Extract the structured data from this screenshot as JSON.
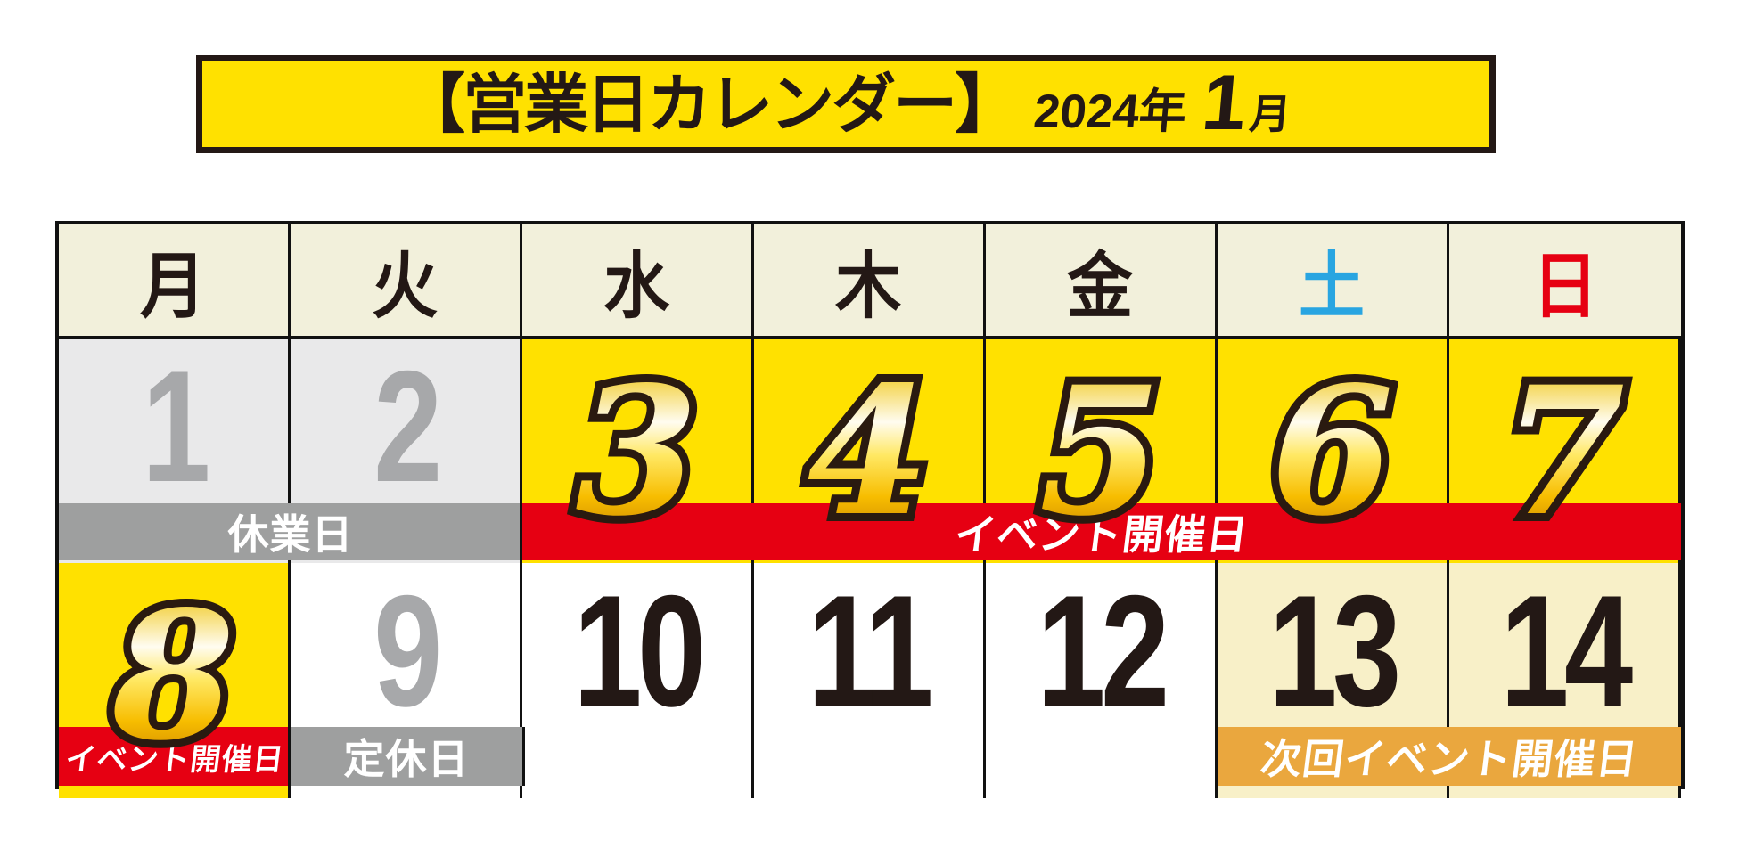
{
  "title": {
    "main": "【営業日カレンダー】",
    "year": "2024年",
    "month_num": "1",
    "month_unit": "月"
  },
  "colors": {
    "yellow": "#ffe100",
    "red": "#e60012",
    "orange": "#eaa73e",
    "gray_banner": "#9e9f9f",
    "closed_bg": "#e9e9ea",
    "next_bg": "#f8f0c8",
    "header_bg": "#f2f0db",
    "ink": "#231815",
    "gray_num": "#a7a8aa",
    "line": "#111111",
    "saturday_blue": "#29a5e1",
    "sunday_red": "#e60012"
  },
  "calendar": {
    "weekdays": [
      {
        "label": "月",
        "color": "#231815"
      },
      {
        "label": "火",
        "color": "#231815"
      },
      {
        "label": "水",
        "color": "#231815"
      },
      {
        "label": "木",
        "color": "#231815"
      },
      {
        "label": "金",
        "color": "#231815"
      },
      {
        "label": "土",
        "color": "#29a5e1"
      },
      {
        "label": "日",
        "color": "#e60012"
      }
    ],
    "weeks": [
      {
        "days": [
          {
            "num": "1",
            "bg": "closed",
            "num_style": "gray"
          },
          {
            "num": "2",
            "bg": "closed",
            "num_style": "gray"
          },
          {
            "num": "3",
            "bg": "event",
            "num_style": "gold"
          },
          {
            "num": "4",
            "bg": "event",
            "num_style": "gold"
          },
          {
            "num": "5",
            "bg": "event",
            "num_style": "gold"
          },
          {
            "num": "6",
            "bg": "event",
            "num_style": "gold"
          },
          {
            "num": "7",
            "bg": "event",
            "num_style": "gold"
          }
        ],
        "banners": [
          {
            "label": "休業日",
            "color": "gray",
            "start": 0,
            "end": 2
          },
          {
            "label": "イベント開催日",
            "color": "red",
            "start": 2,
            "end": 7
          }
        ]
      },
      {
        "days": [
          {
            "num": "8",
            "bg": "event",
            "num_style": "gold"
          },
          {
            "num": "9",
            "bg": "white",
            "num_style": "gray"
          },
          {
            "num": "10",
            "bg": "white",
            "num_style": "dark"
          },
          {
            "num": "11",
            "bg": "white",
            "num_style": "dark"
          },
          {
            "num": "12",
            "bg": "white",
            "num_style": "dark"
          },
          {
            "num": "13",
            "bg": "next",
            "num_style": "dark"
          },
          {
            "num": "14",
            "bg": "next",
            "num_style": "dark"
          }
        ],
        "banners": [
          {
            "label": "イベント開催日",
            "color": "red",
            "start": 0,
            "end": 1
          },
          {
            "label": "定休日",
            "color": "gray",
            "start": 1,
            "end": 2
          },
          {
            "label": "次回イベント開催日",
            "color": "orange",
            "start": 5,
            "end": 7
          }
        ]
      }
    ]
  }
}
